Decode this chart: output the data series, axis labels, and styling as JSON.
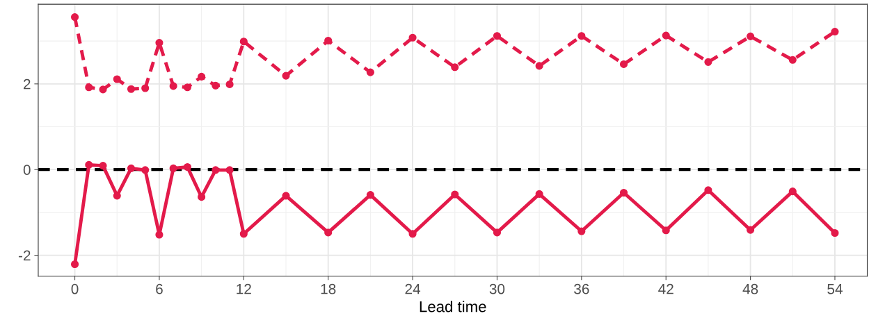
{
  "chart_data": {
    "type": "line",
    "xlabel": "Lead time",
    "xlim": [
      -2.6,
      56.3
    ],
    "ylim": [
      -2.49,
      3.86
    ],
    "xticks": [
      0,
      6,
      12,
      18,
      24,
      30,
      36,
      42,
      48,
      54
    ],
    "yticks": [
      -2,
      0,
      2
    ],
    "grid": true,
    "marker": "circle",
    "ref_lines": [
      {
        "axis": "y",
        "value": 0,
        "color": "#000000",
        "line_style": "dashed"
      }
    ],
    "series": [
      {
        "color": "#e31a4a",
        "line_style": "dashed",
        "x": [
          0,
          1,
          2,
          3,
          4,
          5,
          6,
          7,
          8,
          9,
          10,
          11,
          12,
          15,
          18,
          21,
          24,
          27,
          30,
          33,
          36,
          39,
          42,
          45,
          48,
          51,
          54
        ],
        "values": [
          3.56,
          1.92,
          1.87,
          2.11,
          1.88,
          1.9,
          2.96,
          1.95,
          1.92,
          2.17,
          1.96,
          1.99,
          2.99,
          2.19,
          3.01,
          2.27,
          3.08,
          2.39,
          3.12,
          2.42,
          3.12,
          2.46,
          3.13,
          2.51,
          3.11,
          2.56,
          3.22
        ]
      },
      {
        "color": "#e31a4a",
        "line_style": "solid",
        "x": [
          0,
          1,
          2,
          3,
          4,
          5,
          6,
          7,
          8,
          9,
          10,
          11,
          12,
          15,
          18,
          21,
          24,
          27,
          30,
          33,
          36,
          39,
          42,
          45,
          48,
          51,
          54
        ],
        "values": [
          -2.21,
          0.11,
          0.09,
          -0.61,
          0.03,
          -0.01,
          -1.52,
          0.03,
          0.06,
          -0.64,
          -0.01,
          -0.01,
          -1.5,
          -0.61,
          -1.47,
          -0.59,
          -1.5,
          -0.58,
          -1.47,
          -0.57,
          -1.44,
          -0.54,
          -1.42,
          -0.48,
          -1.41,
          -0.51,
          -1.48
        ]
      }
    ]
  }
}
